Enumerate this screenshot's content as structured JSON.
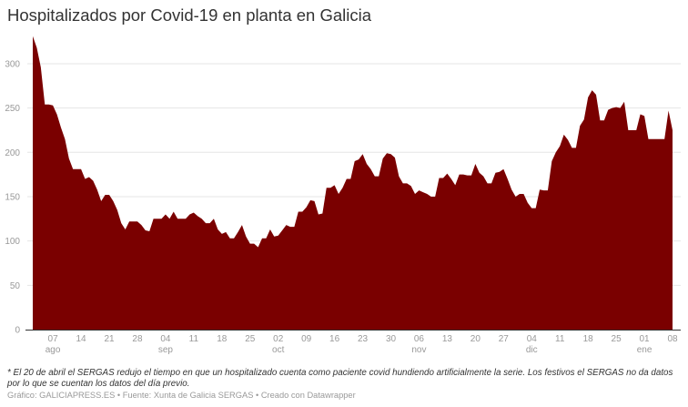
{
  "header": {
    "title": "Hospitalizados por Covid-19 en planta en Galicia"
  },
  "footer": {
    "note": "* El 20 de abril el SERGAS redujo el tiempo en que un hospitalizado cuenta como paciente covid hundiendo artificialmente la serie. Los festivos el SERGAS no da datos por lo que se cuentan los datos del día previo.",
    "credits": "Gráfico: GALICIAPRESS.ES • Fuente: Xunta de Galicia SERGAS • Creado con Datawrapper"
  },
  "colors": {
    "area": "#7a0000",
    "grid": "#e6e6e6",
    "axis": "#333333",
    "tick_text": "#999999"
  },
  "chart_data": {
    "type": "area",
    "title": "Hospitalizados por Covid-19 en planta en Galicia",
    "xlabel": "",
    "ylabel": "",
    "ylim": [
      0,
      330
    ],
    "yticks": [
      0,
      50,
      100,
      150,
      200,
      250,
      300
    ],
    "grid": true,
    "legend": null,
    "xticks": [
      {
        "day": 5,
        "label": "07",
        "month": "ago"
      },
      {
        "day": 12,
        "label": "14",
        "month": ""
      },
      {
        "day": 19,
        "label": "21",
        "month": ""
      },
      {
        "day": 26,
        "label": "28",
        "month": ""
      },
      {
        "day": 33,
        "label": "04",
        "month": "sep"
      },
      {
        "day": 40,
        "label": "11",
        "month": ""
      },
      {
        "day": 47,
        "label": "18",
        "month": ""
      },
      {
        "day": 54,
        "label": "25",
        "month": ""
      },
      {
        "day": 61,
        "label": "02",
        "month": "oct"
      },
      {
        "day": 68,
        "label": "09",
        "month": ""
      },
      {
        "day": 75,
        "label": "16",
        "month": ""
      },
      {
        "day": 82,
        "label": "23",
        "month": ""
      },
      {
        "day": 89,
        "label": "30",
        "month": ""
      },
      {
        "day": 96,
        "label": "06",
        "month": "nov"
      },
      {
        "day": 103,
        "label": "13",
        "month": ""
      },
      {
        "day": 110,
        "label": "20",
        "month": ""
      },
      {
        "day": 117,
        "label": "27",
        "month": ""
      },
      {
        "day": 124,
        "label": "04",
        "month": "dic"
      },
      {
        "day": 131,
        "label": "11",
        "month": ""
      },
      {
        "day": 138,
        "label": "18",
        "month": ""
      },
      {
        "day": 145,
        "label": "25",
        "month": ""
      },
      {
        "day": 152,
        "label": "01",
        "month": "ene"
      },
      {
        "day": 159,
        "label": "08",
        "month": ""
      }
    ],
    "start_date": "2 ago",
    "end_date": "9 ene",
    "values": [
      331,
      318,
      296,
      254,
      254,
      253,
      243,
      228,
      215,
      193,
      181,
      181,
      181,
      170,
      172,
      168,
      158,
      145,
      152,
      152,
      145,
      135,
      120,
      113,
      122,
      122,
      122,
      118,
      112,
      111,
      125,
      125,
      125,
      130,
      125,
      133,
      125,
      125,
      125,
      130,
      132,
      128,
      125,
      120,
      120,
      125,
      113,
      108,
      110,
      103,
      103,
      110,
      118,
      105,
      97,
      97,
      93,
      103,
      103,
      113,
      105,
      106,
      112,
      118,
      116,
      116,
      133,
      133,
      138,
      146,
      145,
      130,
      131,
      160,
      160,
      163,
      153,
      160,
      170,
      170,
      190,
      192,
      198,
      187,
      181,
      173,
      173,
      193,
      199,
      198,
      194,
      173,
      165,
      165,
      162,
      153,
      157,
      155,
      153,
      150,
      150,
      171,
      171,
      176,
      170,
      163,
      175,
      175,
      174,
      174,
      187,
      177,
      173,
      165,
      165,
      177,
      178,
      181,
      170,
      158,
      150,
      153,
      153,
      143,
      137,
      137,
      158,
      157,
      157,
      190,
      200,
      207,
      220,
      214,
      205,
      205,
      230,
      237,
      262,
      270,
      265,
      236,
      236,
      248,
      250,
      251,
      250,
      257,
      225,
      225,
      225,
      243,
      241,
      215,
      215,
      215,
      215,
      215,
      247,
      225
    ]
  }
}
